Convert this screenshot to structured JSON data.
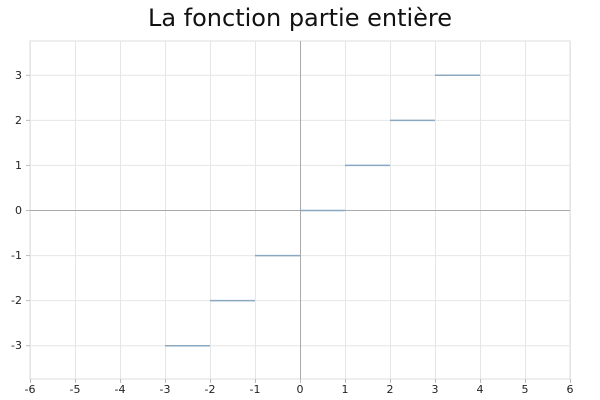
{
  "chart_data": {
    "type": "line",
    "title": "La fonction partie entière",
    "xlabel": "",
    "ylabel": "",
    "xlim": [
      -6,
      6
    ],
    "ylim": [
      -3.75,
      3.75
    ],
    "grid": true,
    "x_ticks": [
      "-6",
      "-5",
      "-4",
      "-3",
      "-2",
      "-1",
      "0",
      "1",
      "2",
      "3",
      "4",
      "5",
      "6"
    ],
    "y_ticks": [
      "-3",
      "-2",
      "-1",
      "0",
      "1",
      "2",
      "3"
    ],
    "series": [
      {
        "color": "#8aa9c1",
        "segments": [
          {
            "x1": -3,
            "x2": -2,
            "y": -3
          },
          {
            "x1": -2,
            "x2": -1,
            "y": -2
          },
          {
            "x1": -1,
            "x2": 0,
            "y": -1
          },
          {
            "x1": 0,
            "x2": 1,
            "y": 0
          },
          {
            "x1": 1,
            "x2": 2,
            "y": 1
          },
          {
            "x1": 2,
            "x2": 3,
            "y": 2
          },
          {
            "x1": 3,
            "x2": 4,
            "y": 3
          }
        ]
      }
    ]
  }
}
